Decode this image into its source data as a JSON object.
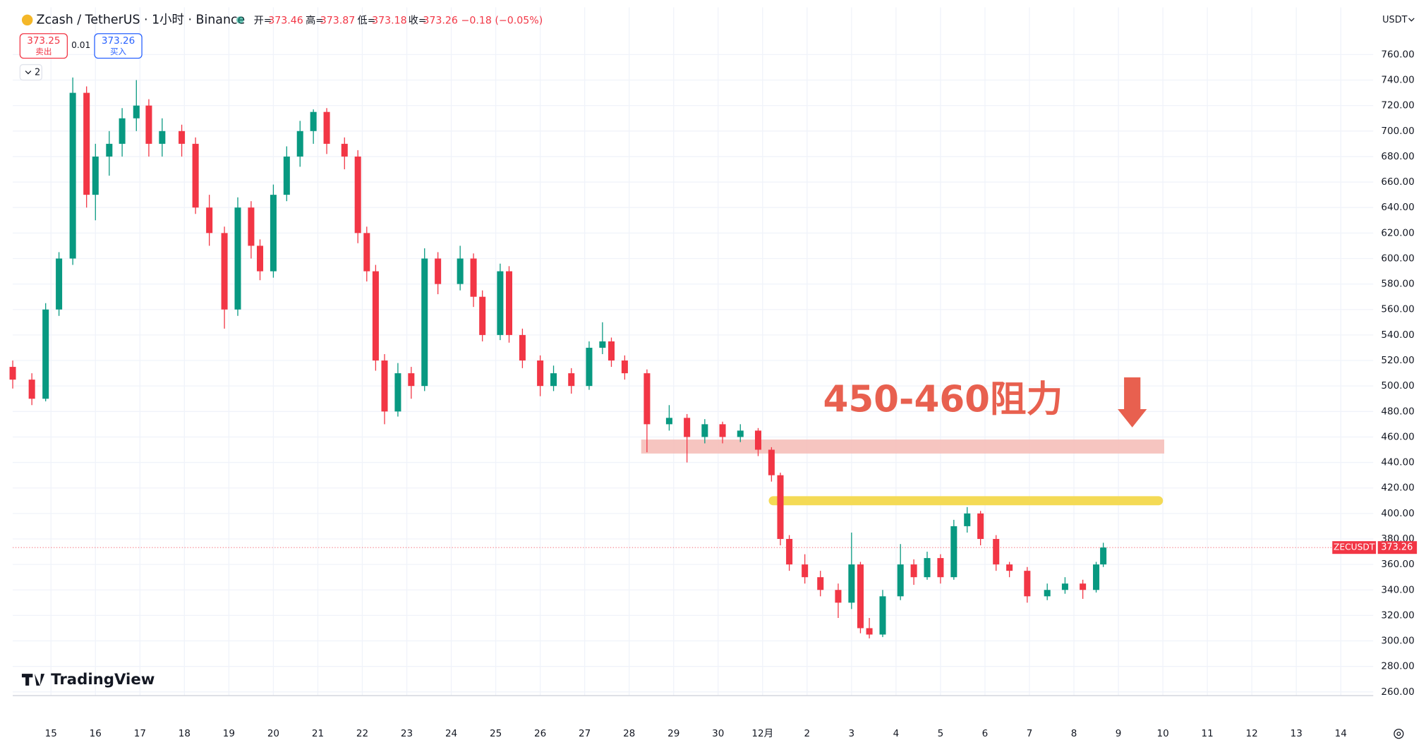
{
  "header": {
    "symbol": "Zcash / TetherUS · 1小时 · Binance",
    "open_label": "开=",
    "open": 373.46,
    "high_label": "高=",
    "high": 373.87,
    "low_label": "低=",
    "low": 373.18,
    "close_label": "收=",
    "close": 373.26,
    "change": "−0.18 (−0.05%)",
    "currency": "USDT",
    "indicator_count": "2"
  },
  "trade": {
    "sell_price": 373.25,
    "sell_label": "卖出",
    "spread": 0.01,
    "buy_price": 373.26,
    "buy_label": "买入"
  },
  "brand": "TradingView",
  "chart_data": {
    "type": "candlestick",
    "ticker": "ZECUSDT",
    "last_price": 373.26,
    "up_color": "#089981",
    "down_color": "#f23645",
    "grid": true,
    "xlim": [
      -0.86,
      29.73
    ],
    "ylim": [
      257.1,
      797.1
    ],
    "xticks": [
      {
        "value": 0,
        "label": "15"
      },
      {
        "value": 1,
        "label": "16"
      },
      {
        "value": 2,
        "label": "17"
      },
      {
        "value": 3,
        "label": "18"
      },
      {
        "value": 4,
        "label": "19"
      },
      {
        "value": 5,
        "label": "20"
      },
      {
        "value": 6,
        "label": "21"
      },
      {
        "value": 7,
        "label": "22"
      },
      {
        "value": 8,
        "label": "23"
      },
      {
        "value": 9,
        "label": "24"
      },
      {
        "value": 10,
        "label": "25"
      },
      {
        "value": 11,
        "label": "26"
      },
      {
        "value": 12,
        "label": "27"
      },
      {
        "value": 13,
        "label": "28"
      },
      {
        "value": 14,
        "label": "29"
      },
      {
        "value": 15,
        "label": "30"
      },
      {
        "value": 16,
        "label": "12月"
      },
      {
        "value": 17,
        "label": "2"
      },
      {
        "value": 18,
        "label": "3"
      },
      {
        "value": 19,
        "label": "4"
      },
      {
        "value": 20,
        "label": "5"
      },
      {
        "value": 21,
        "label": "6"
      },
      {
        "value": 22,
        "label": "7"
      },
      {
        "value": 23,
        "label": "8"
      },
      {
        "value": 24,
        "label": "9"
      },
      {
        "value": 25,
        "label": "10"
      },
      {
        "value": 26,
        "label": "11"
      },
      {
        "value": 27,
        "label": "12"
      },
      {
        "value": 28,
        "label": "13"
      },
      {
        "value": 29,
        "label": "14"
      }
    ],
    "yticks": [
      {
        "value": 260,
        "label": "260.00"
      },
      {
        "value": 280,
        "label": "280.00"
      },
      {
        "value": 300,
        "label": "300.00"
      },
      {
        "value": 320,
        "label": "320.00"
      },
      {
        "value": 340,
        "label": "340.00"
      },
      {
        "value": 360,
        "label": "360.00"
      },
      {
        "value": 380,
        "label": "380.00"
      },
      {
        "value": 400,
        "label": "400.00"
      },
      {
        "value": 420,
        "label": "420.00"
      },
      {
        "value": 440,
        "label": "440.00"
      },
      {
        "value": 460,
        "label": "460.00"
      },
      {
        "value": 480,
        "label": "480.00"
      },
      {
        "value": 500,
        "label": "500.00"
      },
      {
        "value": 520,
        "label": "520.00"
      },
      {
        "value": 540,
        "label": "540.00"
      },
      {
        "value": 560,
        "label": "560.00"
      },
      {
        "value": 580,
        "label": "580.00"
      },
      {
        "value": 600,
        "label": "600.00"
      },
      {
        "value": 620,
        "label": "620.00"
      },
      {
        "value": 640,
        "label": "640.00"
      },
      {
        "value": 660,
        "label": "660.00"
      },
      {
        "value": 680,
        "label": "680.00"
      },
      {
        "value": 700,
        "label": "700.00"
      },
      {
        "value": 720,
        "label": "720.00"
      },
      {
        "value": 740,
        "label": "740.00"
      },
      {
        "value": 760,
        "label": "760.00"
      }
    ],
    "x": [
      -0.86,
      -0.43,
      -0.12,
      0.18,
      0.49,
      0.8,
      1.0,
      1.31,
      1.6,
      1.92,
      2.2,
      2.5,
      2.94,
      3.25,
      3.56,
      3.9,
      4.2,
      4.5,
      4.7,
      5.0,
      5.3,
      5.6,
      5.9,
      6.2,
      6.6,
      6.9,
      7.1,
      7.3,
      7.5,
      7.8,
      8.1,
      8.4,
      8.7,
      9.2,
      9.5,
      9.7,
      10.1,
      10.3,
      10.6,
      11.0,
      11.3,
      11.7,
      12.1,
      12.4,
      12.6,
      12.9,
      13.4,
      13.9,
      14.3,
      14.7,
      15.1,
      15.5,
      15.9,
      16.2,
      16.4,
      16.6,
      16.95,
      17.3,
      17.7,
      18.0,
      18.2,
      18.4,
      18.7,
      19.1,
      19.4,
      19.7,
      20.0,
      20.3,
      20.6,
      20.9,
      21.25,
      21.55,
      21.95,
      22.4,
      22.8,
      23.2,
      23.5,
      23.66
    ],
    "open": [
      515,
      505,
      490,
      560,
      600,
      730,
      650,
      680,
      690,
      710,
      720,
      690,
      700,
      690,
      640,
      620,
      560,
      640,
      610,
      590,
      650,
      680,
      700,
      715,
      690,
      680,
      620,
      590,
      520,
      480,
      510,
      500,
      600,
      580,
      600,
      570,
      540,
      590,
      540,
      520,
      500,
      510,
      500,
      530,
      535,
      520,
      510,
      470,
      475,
      460,
      470,
      460,
      465,
      450,
      430,
      380,
      360,
      350,
      340,
      330,
      360,
      310,
      305,
      335,
      360,
      350,
      365,
      350,
      390,
      400,
      380,
      360,
      355,
      335,
      340,
      345,
      340,
      360
    ],
    "high": [
      520,
      510,
      565,
      605,
      742,
      735,
      690,
      700,
      718,
      740,
      725,
      710,
      705,
      695,
      650,
      625,
      648,
      645,
      615,
      658,
      688,
      708,
      717,
      718,
      695,
      685,
      625,
      595,
      525,
      518,
      515,
      608,
      605,
      610,
      604,
      575,
      596,
      594,
      545,
      524,
      516,
      514,
      535,
      550,
      538,
      524,
      513,
      485,
      478,
      474,
      472,
      470,
      467,
      452,
      432,
      383,
      368,
      355,
      345,
      385,
      362,
      318,
      340,
      376,
      364,
      370,
      368,
      395,
      405,
      402,
      383,
      362,
      358,
      345,
      350,
      348,
      362,
      377
    ],
    "low": [
      498,
      485,
      488,
      555,
      595,
      640,
      630,
      665,
      680,
      700,
      680,
      680,
      680,
      635,
      610,
      545,
      555,
      600,
      583,
      585,
      645,
      672,
      690,
      682,
      670,
      612,
      582,
      512,
      470,
      476,
      490,
      496,
      572,
      575,
      562,
      535,
      536,
      534,
      514,
      492,
      496,
      494,
      497,
      525,
      515,
      505,
      448,
      465,
      440,
      455,
      455,
      456,
      445,
      425,
      375,
      355,
      345,
      335,
      318,
      325,
      306,
      302,
      303,
      332,
      344,
      348,
      345,
      348,
      385,
      375,
      355,
      350,
      330,
      332,
      337,
      333,
      338,
      358
    ],
    "close": [
      505,
      490,
      560,
      600,
      730,
      650,
      680,
      690,
      710,
      720,
      690,
      700,
      690,
      640,
      620,
      560,
      640,
      610,
      590,
      650,
      680,
      700,
      715,
      690,
      680,
      620,
      590,
      520,
      480,
      510,
      500,
      600,
      580,
      600,
      570,
      540,
      590,
      540,
      520,
      500,
      510,
      500,
      530,
      535,
      520,
      510,
      470,
      475,
      460,
      470,
      460,
      465,
      450,
      430,
      380,
      360,
      350,
      340,
      330,
      360,
      310,
      305,
      335,
      360,
      350,
      365,
      350,
      390,
      400,
      380,
      360,
      355,
      335,
      340,
      345,
      340,
      360,
      373.26
    ],
    "resistance_band": {
      "ylim": [
        447,
        458
      ],
      "xlim": [
        13.27,
        25.03
      ],
      "color": "#f5bfb9"
    },
    "support_line": {
      "y": 410,
      "xlim": [
        16.24,
        24.9
      ],
      "color": "#f4da55"
    },
    "annotation": {
      "text": "450-460阻力",
      "color": "#e8604f"
    }
  }
}
